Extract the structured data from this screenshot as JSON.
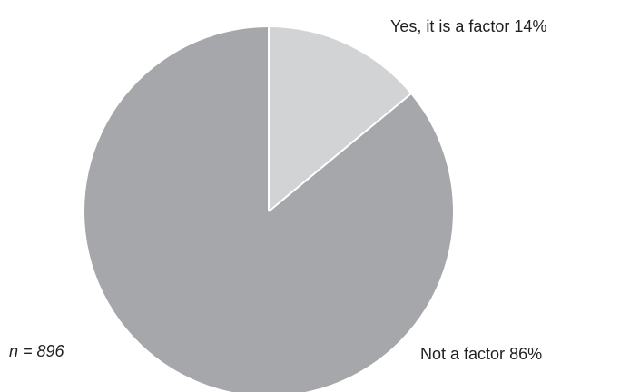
{
  "chart_data": {
    "type": "pie",
    "title": "",
    "slices": [
      {
        "label": "Yes, it is a factor",
        "value": 14,
        "display": "14%",
        "color": "#d2d3d5"
      },
      {
        "label": "Not a factor",
        "value": 86,
        "display": "86%",
        "color": "#a6a7aa"
      }
    ],
    "start_angle_deg": 0,
    "direction": "clockwise",
    "sample_note": "n = 896",
    "separator_color": "#ffffff"
  }
}
